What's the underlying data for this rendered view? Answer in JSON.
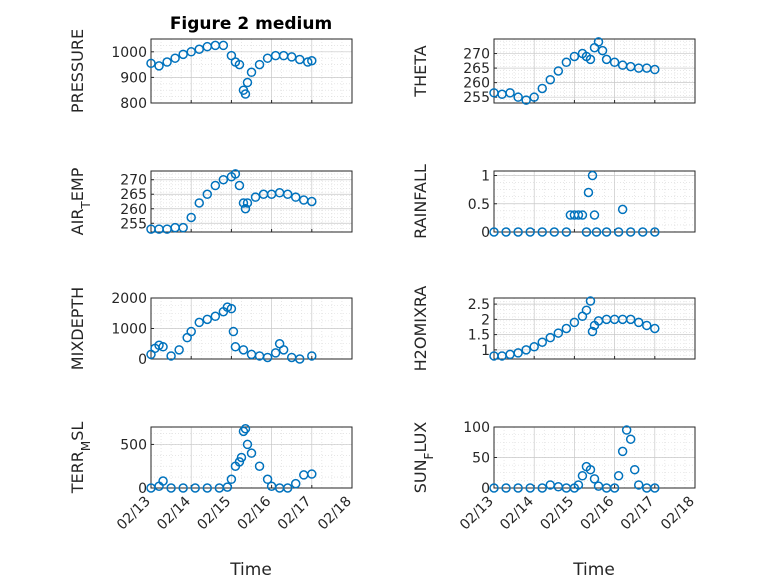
{
  "figure": {
    "title": "Figure 2 medium",
    "xlabel": "Time",
    "x_ticklabels": [
      "02/13",
      "02/14",
      "02/15",
      "02/16",
      "02/17",
      "02/18"
    ],
    "series_color": "#0072BD",
    "marker": "circle"
  },
  "chart_data": [
    {
      "type": "scatter",
      "id": "pressure",
      "ylabel": "PRESSURE",
      "xlim": [
        13,
        18
      ],
      "ylim": [
        800,
        1050
      ],
      "yticks": [
        800,
        900,
        1000
      ],
      "ytick_labels": [
        "800",
        "900",
        "1000"
      ],
      "grid": true,
      "points": [
        [
          13.0,
          955
        ],
        [
          13.2,
          945
        ],
        [
          13.4,
          960
        ],
        [
          13.6,
          975
        ],
        [
          13.8,
          990
        ],
        [
          14.0,
          1000
        ],
        [
          14.2,
          1010
        ],
        [
          14.4,
          1020
        ],
        [
          14.6,
          1025
        ],
        [
          14.8,
          1025
        ],
        [
          15.0,
          985
        ],
        [
          15.1,
          960
        ],
        [
          15.2,
          950
        ],
        [
          15.3,
          850
        ],
        [
          15.35,
          835
        ],
        [
          15.4,
          880
        ],
        [
          15.5,
          920
        ],
        [
          15.7,
          950
        ],
        [
          15.9,
          975
        ],
        [
          16.1,
          985
        ],
        [
          16.3,
          985
        ],
        [
          16.5,
          980
        ],
        [
          16.7,
          970
        ],
        [
          16.9,
          960
        ],
        [
          17.0,
          965
        ]
      ]
    },
    {
      "type": "scatter",
      "id": "theta",
      "ylabel": "THETA",
      "xlim": [
        13,
        18
      ],
      "ylim": [
        253,
        275
      ],
      "yticks": [
        255,
        260,
        265,
        270
      ],
      "ytick_labels": [
        "255",
        "260",
        "265",
        "270"
      ],
      "grid": true,
      "points": [
        [
          13.0,
          256.5
        ],
        [
          13.2,
          256
        ],
        [
          13.4,
          256.5
        ],
        [
          13.6,
          255
        ],
        [
          13.8,
          254
        ],
        [
          14.0,
          255
        ],
        [
          14.2,
          258
        ],
        [
          14.4,
          261
        ],
        [
          14.6,
          264
        ],
        [
          14.8,
          267
        ],
        [
          15.0,
          269
        ],
        [
          15.2,
          270
        ],
        [
          15.3,
          269
        ],
        [
          15.4,
          268
        ],
        [
          15.5,
          272
        ],
        [
          15.6,
          274
        ],
        [
          15.7,
          271
        ],
        [
          15.8,
          268
        ],
        [
          16.0,
          267
        ],
        [
          16.2,
          266
        ],
        [
          16.4,
          265.5
        ],
        [
          16.6,
          265
        ],
        [
          16.8,
          265
        ],
        [
          17.0,
          264.5
        ]
      ]
    },
    {
      "type": "scatter",
      "id": "air_temp",
      "ylabel": "AIR_TEMP",
      "xlim": [
        13,
        18
      ],
      "ylim": [
        252,
        273
      ],
      "yticks": [
        255,
        260,
        265,
        270
      ],
      "ytick_labels": [
        "255",
        "260",
        "265",
        "270"
      ],
      "grid": true,
      "points": [
        [
          13.0,
          253
        ],
        [
          13.2,
          253
        ],
        [
          13.4,
          253
        ],
        [
          13.6,
          253.5
        ],
        [
          13.8,
          253.5
        ],
        [
          14.0,
          257
        ],
        [
          14.2,
          262
        ],
        [
          14.4,
          265
        ],
        [
          14.6,
          268
        ],
        [
          14.8,
          270
        ],
        [
          15.0,
          271
        ],
        [
          15.1,
          272
        ],
        [
          15.2,
          268
        ],
        [
          15.3,
          262
        ],
        [
          15.35,
          260
        ],
        [
          15.4,
          262
        ],
        [
          15.6,
          264
        ],
        [
          15.8,
          265
        ],
        [
          16.0,
          265
        ],
        [
          16.2,
          265.5
        ],
        [
          16.4,
          265
        ],
        [
          16.6,
          264
        ],
        [
          16.8,
          263
        ],
        [
          17.0,
          262.5
        ]
      ]
    },
    {
      "type": "scatter",
      "id": "rainfall",
      "ylabel": "RAINFALL",
      "xlim": [
        13,
        18
      ],
      "ylim": [
        0,
        1.08
      ],
      "yticks": [
        0,
        0.5,
        1
      ],
      "ytick_labels": [
        "0",
        "0.5",
        "1"
      ],
      "grid": true,
      "points": [
        [
          13.0,
          0
        ],
        [
          13.3,
          0
        ],
        [
          13.6,
          0
        ],
        [
          13.9,
          0
        ],
        [
          14.2,
          0
        ],
        [
          14.5,
          0
        ],
        [
          14.8,
          0
        ],
        [
          14.9,
          0.3
        ],
        [
          15.0,
          0.3
        ],
        [
          15.1,
          0.3
        ],
        [
          15.2,
          0.3
        ],
        [
          15.3,
          0
        ],
        [
          15.35,
          0.7
        ],
        [
          15.45,
          1.0
        ],
        [
          15.5,
          0.3
        ],
        [
          15.55,
          0
        ],
        [
          15.8,
          0
        ],
        [
          16.1,
          0
        ],
        [
          16.2,
          0.4
        ],
        [
          16.4,
          0
        ],
        [
          16.7,
          0
        ],
        [
          17.0,
          0
        ]
      ]
    },
    {
      "type": "scatter",
      "id": "mixdepth",
      "ylabel": "MIXDEPTH",
      "xlim": [
        13,
        18
      ],
      "ylim": [
        0,
        2000
      ],
      "yticks": [
        0,
        1000,
        2000
      ],
      "ytick_labels": [
        "0",
        "1000",
        "2000"
      ],
      "grid": true,
      "points": [
        [
          13.0,
          150
        ],
        [
          13.1,
          350
        ],
        [
          13.2,
          450
        ],
        [
          13.3,
          400
        ],
        [
          13.5,
          100
        ],
        [
          13.7,
          300
        ],
        [
          13.9,
          700
        ],
        [
          14.0,
          900
        ],
        [
          14.2,
          1200
        ],
        [
          14.4,
          1300
        ],
        [
          14.6,
          1400
        ],
        [
          14.8,
          1550
        ],
        [
          14.9,
          1700
        ],
        [
          15.0,
          1650
        ],
        [
          15.05,
          900
        ],
        [
          15.1,
          400
        ],
        [
          15.3,
          300
        ],
        [
          15.5,
          150
        ],
        [
          15.7,
          100
        ],
        [
          15.9,
          50
        ],
        [
          16.1,
          200
        ],
        [
          16.2,
          500
        ],
        [
          16.3,
          300
        ],
        [
          16.5,
          50
        ],
        [
          16.7,
          0
        ],
        [
          17.0,
          100
        ]
      ]
    },
    {
      "type": "scatter",
      "id": "h2omixra",
      "ylabel": "H2OMIXRA",
      "xlim": [
        13,
        18
      ],
      "ylim": [
        0.7,
        2.7
      ],
      "yticks": [
        1,
        1.5,
        2,
        2.5
      ],
      "ytick_labels": [
        "1",
        "1.5",
        "2",
        "2.5"
      ],
      "grid": true,
      "points": [
        [
          13.0,
          0.8
        ],
        [
          13.2,
          0.8
        ],
        [
          13.4,
          0.85
        ],
        [
          13.6,
          0.9
        ],
        [
          13.8,
          1.0
        ],
        [
          14.0,
          1.1
        ],
        [
          14.2,
          1.25
        ],
        [
          14.4,
          1.4
        ],
        [
          14.6,
          1.55
        ],
        [
          14.8,
          1.7
        ],
        [
          15.0,
          1.9
        ],
        [
          15.2,
          2.1
        ],
        [
          15.3,
          2.3
        ],
        [
          15.4,
          2.6
        ],
        [
          15.45,
          1.6
        ],
        [
          15.5,
          1.8
        ],
        [
          15.6,
          1.95
        ],
        [
          15.8,
          2.0
        ],
        [
          16.0,
          2.0
        ],
        [
          16.2,
          2.0
        ],
        [
          16.4,
          2.0
        ],
        [
          16.6,
          1.9
        ],
        [
          16.8,
          1.8
        ],
        [
          17.0,
          1.7
        ]
      ]
    },
    {
      "type": "scatter",
      "id": "terr_msl",
      "ylabel": "TERR_MSL",
      "xlim": [
        13,
        18
      ],
      "ylim": [
        0,
        700
      ],
      "yticks": [
        0,
        500
      ],
      "ytick_labels": [
        "0",
        "500"
      ],
      "grid": true,
      "points": [
        [
          13.0,
          0
        ],
        [
          13.2,
          20
        ],
        [
          13.3,
          80
        ],
        [
          13.5,
          0
        ],
        [
          13.8,
          0
        ],
        [
          14.1,
          0
        ],
        [
          14.4,
          0
        ],
        [
          14.7,
          0
        ],
        [
          14.9,
          10
        ],
        [
          15.0,
          100
        ],
        [
          15.1,
          250
        ],
        [
          15.2,
          300
        ],
        [
          15.25,
          350
        ],
        [
          15.3,
          650
        ],
        [
          15.35,
          680
        ],
        [
          15.4,
          500
        ],
        [
          15.5,
          400
        ],
        [
          15.7,
          250
        ],
        [
          15.9,
          100
        ],
        [
          16.0,
          20
        ],
        [
          16.2,
          0
        ],
        [
          16.4,
          0
        ],
        [
          16.6,
          50
        ],
        [
          16.8,
          150
        ],
        [
          17.0,
          160
        ]
      ]
    },
    {
      "type": "scatter",
      "id": "sun_flux",
      "ylabel": "SUN_FLUX",
      "xlim": [
        13,
        18
      ],
      "ylim": [
        0,
        100
      ],
      "yticks": [
        0,
        50,
        100
      ],
      "ytick_labels": [
        "0",
        "50",
        "100"
      ],
      "grid": true,
      "points": [
        [
          13.0,
          0
        ],
        [
          13.3,
          0
        ],
        [
          13.6,
          0
        ],
        [
          13.9,
          0
        ],
        [
          14.2,
          0
        ],
        [
          14.4,
          5
        ],
        [
          14.6,
          2
        ],
        [
          14.8,
          0
        ],
        [
          15.0,
          0
        ],
        [
          15.1,
          5
        ],
        [
          15.2,
          20
        ],
        [
          15.3,
          35
        ],
        [
          15.4,
          30
        ],
        [
          15.5,
          15
        ],
        [
          15.6,
          3
        ],
        [
          15.8,
          0
        ],
        [
          16.0,
          0
        ],
        [
          16.1,
          20
        ],
        [
          16.2,
          60
        ],
        [
          16.3,
          95
        ],
        [
          16.4,
          80
        ],
        [
          16.5,
          30
        ],
        [
          16.6,
          5
        ],
        [
          16.8,
          0
        ],
        [
          17.0,
          0
        ]
      ]
    }
  ]
}
